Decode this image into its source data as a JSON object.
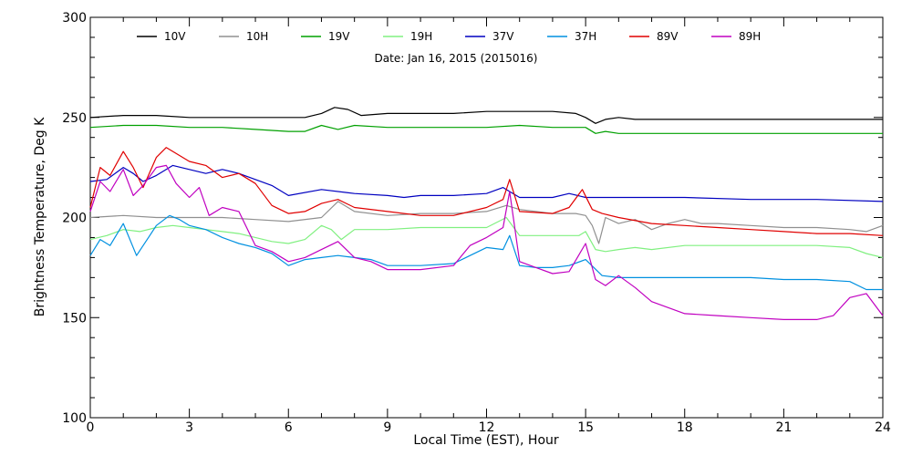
{
  "chart_data": {
    "type": "line",
    "title": "Date: Jan 16, 2015 (2015016)",
    "xlabel": "Local Time (EST), Hour",
    "ylabel": "Brightness Temperature, Deg K",
    "xlim": [
      0,
      24
    ],
    "ylim": [
      100,
      300
    ],
    "xticks": [
      0,
      3,
      6,
      9,
      12,
      15,
      18,
      21,
      24
    ],
    "yticks": [
      100,
      150,
      200,
      250,
      300
    ],
    "grid": false,
    "legend_position": "top",
    "series": [
      {
        "name": "10V",
        "color": "#000000",
        "x": [
          0,
          1,
          2,
          3,
          4,
          5,
          6,
          6.5,
          7,
          7.4,
          7.8,
          8.2,
          9,
          10,
          11,
          12,
          12.6,
          13,
          14,
          14.7,
          15,
          15.3,
          15.6,
          16,
          16.5,
          17,
          18,
          20,
          22,
          24
        ],
        "y": [
          250,
          251,
          251,
          250,
          250,
          250,
          250,
          250,
          252,
          255,
          254,
          251,
          252,
          252,
          252,
          253,
          253,
          253,
          253,
          252,
          250,
          247,
          249,
          250,
          249,
          249,
          249,
          249,
          249,
          249
        ]
      },
      {
        "name": "10H",
        "color": "#909090",
        "x": [
          0,
          1,
          2,
          3,
          4,
          5,
          6,
          7,
          7.5,
          8,
          9,
          10,
          11,
          12,
          12.6,
          13,
          14,
          14.7,
          15,
          15.2,
          15.4,
          15.6,
          16,
          16.5,
          17,
          17.5,
          18,
          18.5,
          19,
          20,
          21,
          22,
          23,
          23.5,
          24
        ],
        "y": [
          200,
          201,
          200,
          200,
          200,
          199,
          198,
          200,
          208,
          203,
          201,
          202,
          202,
          203,
          206,
          204,
          202,
          202,
          201,
          196,
          187,
          200,
          197,
          199,
          194,
          197,
          199,
          197,
          197,
          196,
          195,
          195,
          194,
          193,
          196
        ]
      },
      {
        "name": "19V",
        "color": "#00a000",
        "x": [
          0,
          1,
          2,
          3,
          4,
          5,
          6,
          6.5,
          7,
          7.5,
          8,
          9,
          10,
          11,
          12,
          13,
          14,
          15,
          15.3,
          15.6,
          16,
          17,
          18,
          20,
          22,
          24
        ],
        "y": [
          245,
          246,
          246,
          245,
          245,
          244,
          243,
          243,
          246,
          244,
          246,
          245,
          245,
          245,
          245,
          246,
          245,
          245,
          242,
          243,
          242,
          242,
          242,
          242,
          242,
          242
        ]
      },
      {
        "name": "19H",
        "color": "#80f080",
        "x": [
          0,
          0.5,
          1,
          1.5,
          2,
          2.5,
          3,
          3.5,
          4,
          4.5,
          5,
          5.5,
          6,
          6.5,
          7,
          7.3,
          7.6,
          8,
          9,
          10,
          11,
          12,
          12.6,
          13,
          14,
          14.8,
          15,
          15.3,
          15.6,
          16,
          16.5,
          17,
          18,
          19,
          20,
          21,
          22,
          23,
          23.5,
          24
        ],
        "y": [
          189,
          191,
          194,
          193,
          195,
          196,
          195,
          194,
          193,
          192,
          190,
          188,
          187,
          189,
          196,
          194,
          189,
          194,
          194,
          195,
          195,
          195,
          200,
          191,
          191,
          191,
          193,
          184,
          183,
          184,
          185,
          184,
          186,
          186,
          186,
          186,
          186,
          185,
          182,
          180
        ]
      },
      {
        "name": "37V",
        "color": "#0000c0",
        "x": [
          0,
          0.5,
          1,
          1.3,
          1.6,
          2,
          2.5,
          3,
          3.5,
          4,
          4.5,
          5,
          5.5,
          6,
          7,
          8,
          9,
          9.5,
          10,
          11,
          12,
          12.5,
          12.7,
          13,
          14,
          14.5,
          15,
          15.5,
          16,
          18,
          20,
          22,
          24
        ],
        "y": [
          218,
          219,
          225,
          222,
          218,
          221,
          226,
          224,
          222,
          224,
          222,
          219,
          216,
          211,
          214,
          212,
          211,
          210,
          211,
          211,
          212,
          215,
          213,
          210,
          210,
          212,
          210,
          210,
          210,
          210,
          209,
          209,
          208
        ]
      },
      {
        "name": "37H",
        "color": "#0090e0",
        "x": [
          0,
          0.3,
          0.6,
          1,
          1.4,
          1.8,
          2,
          2.4,
          2.7,
          3,
          3.5,
          4,
          4.5,
          5,
          5.5,
          6,
          6.5,
          7,
          7.5,
          8,
          8.5,
          9,
          10,
          11,
          11.5,
          12,
          12.5,
          12.7,
          13,
          13.5,
          14,
          14.5,
          15,
          15.5,
          16,
          17,
          18,
          19,
          20,
          21,
          22,
          23,
          23.5,
          24
        ],
        "y": [
          181,
          189,
          186,
          197,
          181,
          191,
          196,
          201,
          199,
          196,
          194,
          190,
          187,
          185,
          182,
          176,
          179,
          180,
          181,
          180,
          179,
          176,
          176,
          177,
          181,
          185,
          184,
          191,
          176,
          175,
          175,
          176,
          179,
          171,
          170,
          170,
          170,
          170,
          170,
          169,
          169,
          168,
          164,
          164
        ]
      },
      {
        "name": "89V",
        "color": "#e00000",
        "x": [
          0,
          0.3,
          0.6,
          1,
          1.3,
          1.6,
          2,
          2.3,
          2.6,
          3,
          3.5,
          4,
          4.5,
          5,
          5.5,
          6,
          6.5,
          7,
          7.5,
          8,
          9,
          10,
          11,
          12,
          12.5,
          12.7,
          13,
          14,
          14.5,
          14.9,
          15.2,
          15.5,
          16,
          17,
          18,
          19,
          20,
          21,
          22,
          23,
          24
        ],
        "y": [
          205,
          225,
          221,
          233,
          225,
          215,
          230,
          235,
          232,
          228,
          226,
          220,
          222,
          217,
          206,
          202,
          203,
          207,
          209,
          205,
          203,
          201,
          201,
          205,
          209,
          219,
          203,
          202,
          205,
          214,
          204,
          202,
          200,
          197,
          196,
          195,
          194,
          193,
          192,
          192,
          191
        ]
      },
      {
        "name": "89H",
        "color": "#c000c0",
        "x": [
          0,
          0.3,
          0.6,
          1,
          1.3,
          1.6,
          2,
          2.3,
          2.6,
          3,
          3.3,
          3.6,
          4,
          4.5,
          5,
          5.5,
          6,
          6.5,
          7,
          7.5,
          8,
          8.5,
          9,
          10,
          11,
          11.5,
          12,
          12.5,
          12.7,
          13,
          13.5,
          14,
          14.5,
          15,
          15.3,
          15.6,
          16,
          16.5,
          17,
          18,
          19,
          20,
          21,
          22,
          22.5,
          23,
          23.5,
          24
        ],
        "y": [
          203,
          218,
          213,
          224,
          211,
          216,
          225,
          226,
          217,
          210,
          215,
          201,
          205,
          203,
          186,
          183,
          178,
          180,
          184,
          188,
          180,
          178,
          174,
          174,
          176,
          186,
          190,
          195,
          213,
          178,
          175,
          172,
          173,
          187,
          169,
          166,
          171,
          165,
          158,
          152,
          151,
          150,
          149,
          149,
          151,
          160,
          162,
          151
        ]
      }
    ]
  }
}
